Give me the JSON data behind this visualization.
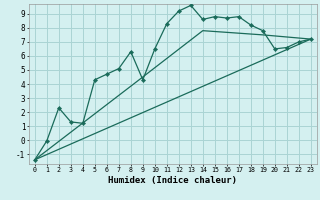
{
  "bg_color": "#d4f0f0",
  "grid_color": "#aad4d4",
  "line_color": "#1a6b5a",
  "xlabel": "Humidex (Indice chaleur)",
  "xlim": [
    -0.5,
    23.5
  ],
  "ylim": [
    -1.7,
    9.7
  ],
  "xticks": [
    0,
    1,
    2,
    3,
    4,
    5,
    6,
    7,
    8,
    9,
    10,
    11,
    12,
    13,
    14,
    15,
    16,
    17,
    18,
    19,
    20,
    21,
    22,
    23
  ],
  "yticks": [
    -1,
    0,
    1,
    2,
    3,
    4,
    5,
    6,
    7,
    8,
    9
  ],
  "series1_x": [
    0,
    1,
    2,
    3,
    4,
    5,
    6,
    7,
    8,
    9,
    10,
    11,
    12,
    13,
    14,
    15,
    16,
    17,
    18,
    19,
    20,
    21,
    22,
    23
  ],
  "series1_y": [
    -1.4,
    -0.05,
    2.3,
    1.3,
    1.2,
    4.3,
    4.7,
    5.1,
    6.3,
    4.3,
    6.5,
    8.3,
    9.2,
    9.6,
    8.6,
    8.8,
    8.7,
    8.8,
    8.2,
    7.8,
    6.5,
    6.6,
    7.0,
    7.2
  ],
  "series2_x": [
    0,
    23
  ],
  "series2_y": [
    -1.4,
    7.2
  ],
  "series3_x": [
    0,
    9,
    14,
    19,
    23
  ],
  "series3_y": [
    -1.4,
    4.5,
    7.8,
    7.5,
    7.2
  ],
  "xlabel_fontsize": 6.5,
  "tick_fontsize_x": 4.8,
  "tick_fontsize_y": 5.5
}
